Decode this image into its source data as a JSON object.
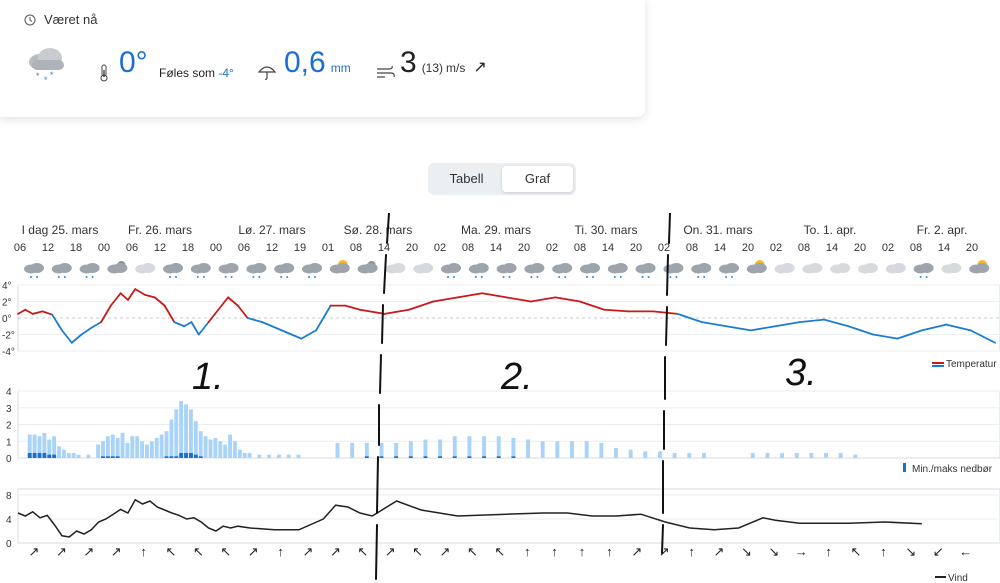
{
  "current": {
    "title": "Været nå",
    "temperature": "0°",
    "feels_like_label": "Føles som",
    "feels_like_value": "-4°",
    "precipitation": "0,6",
    "precip_unit": "mm",
    "wind": "3",
    "gust": "(13)",
    "wind_unit": "m/s",
    "wind_arrow": "↗",
    "weather_icon": "snow-cloud-icon"
  },
  "tabs": {
    "table": "Tabell",
    "graph": "Graf",
    "selected": "Graf"
  },
  "days": [
    {
      "label": "I dag 25. mars"
    },
    {
      "label": "Fr. 26. mars"
    },
    {
      "label": "Lø. 27. mars"
    },
    {
      "label": "Sø. 28. mars"
    },
    {
      "label": "Ma. 29. mars"
    },
    {
      "label": "Ti. 30. mars"
    },
    {
      "label": "On. 31. mars"
    },
    {
      "label": "To. 1. apr."
    },
    {
      "label": "Fr. 2. apr."
    }
  ],
  "hours": [
    "06",
    "12",
    "18",
    "00",
    "06",
    "12",
    "18",
    "00",
    "06",
    "12",
    "19",
    "01",
    "08",
    "14",
    "20",
    "02",
    "08",
    "14",
    "20",
    "02",
    "08",
    "14",
    "20",
    "02",
    "08",
    "14",
    "20",
    "02",
    "08",
    "14",
    "20",
    "02",
    "08",
    "14",
    "20",
    "02"
  ],
  "weather_icons": [
    "cloud-snow",
    "cloud-snow",
    "cloud-snow",
    "night-cloud",
    "cloud",
    "cloud-snow",
    "cloud-snow",
    "cloud-snow",
    "cloud-snow",
    "cloud-snow",
    "cloud-snow",
    "sun-cloud",
    "night-cloud",
    "cloud",
    "cloud",
    "cloud-snow",
    "cloud-snow",
    "cloud-snow",
    "cloud-snow",
    "cloud-snow",
    "cloud-snow",
    "cloud-snow",
    "cloud-snow",
    "cloud-snow",
    "cloud-snow",
    "cloud-snow",
    "sun-cloud",
    "cloud",
    "cloud",
    "cloud",
    "cloud",
    "cloud",
    "cloud-snow",
    "cloud",
    "sun-cloud",
    "cloud"
  ],
  "wind_arrows": [
    "↗",
    "↗",
    "↗",
    "↗",
    "↑",
    "↖",
    "↖",
    "↖",
    "↗",
    "↑",
    "↗",
    "↗",
    "↖",
    "↗",
    "↖",
    "↗",
    "↖",
    "↖",
    "↑",
    "↑",
    "↑",
    "↑",
    "↗",
    "↗",
    "↑",
    "↗",
    "↘",
    "↘",
    "→",
    "↑",
    "↖",
    "↑",
    "↘",
    "↙",
    "←",
    "↙"
  ],
  "temp_ticks": [
    "4°",
    "2°",
    "0°",
    "-2°",
    "-4°"
  ],
  "precip_ticks": [
    "4",
    "3",
    "2",
    "1",
    "0"
  ],
  "wind_ticks": [
    "8",
    "4",
    "0"
  ],
  "legends": {
    "temperature": "Temperatur",
    "precipitation": "Min./maks nedbør",
    "wind": "Vind"
  },
  "annotations": [
    "1.",
    "2.",
    "3."
  ],
  "colors": {
    "warm": "#c91a1a",
    "cold": "#1b7dd1",
    "precip": "#a9d3f8",
    "precip_dark": "#1b6fd1",
    "wind": "#222222",
    "accent": "#1b6fd1"
  },
  "chart_data": {
    "type": "line",
    "x_unit": "hour offset from 25. mars 06:00",
    "temperature": {
      "ylim": [
        -4,
        4
      ],
      "points": [
        [
          0,
          0.5
        ],
        [
          3,
          1.0
        ],
        [
          6,
          0.5
        ],
        [
          10,
          0.8
        ],
        [
          14,
          0.4
        ],
        [
          18,
          -1.5
        ],
        [
          22,
          -3.0
        ],
        [
          26,
          -2.0
        ],
        [
          30,
          -1.2
        ],
        [
          34,
          -0.5
        ],
        [
          38,
          1.5
        ],
        [
          42,
          3.0
        ],
        [
          45,
          2.2
        ],
        [
          48,
          3.5
        ],
        [
          52,
          2.8
        ],
        [
          56,
          2.5
        ],
        [
          60,
          1.5
        ],
        [
          64,
          -0.5
        ],
        [
          68,
          -1.0
        ],
        [
          71,
          -0.5
        ],
        [
          74,
          -2.0
        ],
        [
          78,
          -0.5
        ],
        [
          82,
          1.0
        ],
        [
          86,
          2.5
        ],
        [
          90,
          1.5
        ],
        [
          94,
          0
        ],
        [
          100,
          -0.5
        ],
        [
          108,
          -1.5
        ],
        [
          116,
          -2.5
        ],
        [
          122,
          -1.5
        ],
        [
          128,
          1.5
        ],
        [
          134,
          1.5
        ],
        [
          140,
          1.0
        ],
        [
          150,
          0.5
        ],
        [
          160,
          1.0
        ],
        [
          170,
          2.0
        ],
        [
          180,
          2.5
        ],
        [
          190,
          3.0
        ],
        [
          200,
          2.5
        ],
        [
          210,
          2.0
        ],
        [
          220,
          2.5
        ],
        [
          230,
          2.0
        ],
        [
          240,
          1.0
        ],
        [
          250,
          0.8
        ],
        [
          260,
          0.8
        ],
        [
          270,
          0.5
        ],
        [
          280,
          -0.5
        ],
        [
          290,
          -1.0
        ],
        [
          300,
          -1.5
        ],
        [
          310,
          -1.0
        ],
        [
          320,
          -0.5
        ],
        [
          330,
          -0.2
        ],
        [
          340,
          -1.0
        ],
        [
          350,
          -2.0
        ],
        [
          360,
          -2.5
        ],
        [
          370,
          -1.5
        ],
        [
          380,
          -0.8
        ],
        [
          390,
          -1.5
        ],
        [
          400,
          -3.0
        ]
      ]
    },
    "precipitation": {
      "ylim": [
        0,
        4
      ],
      "bars": [
        [
          4,
          1.4,
          0.3
        ],
        [
          6,
          1.4,
          0.3
        ],
        [
          8,
          1.3,
          0.3
        ],
        [
          10,
          1.5,
          0.3
        ],
        [
          12,
          1.1,
          0.2
        ],
        [
          14,
          1.3,
          0.2
        ],
        [
          16,
          0.7
        ],
        [
          18,
          0.5
        ],
        [
          20,
          0.3
        ],
        [
          22,
          0.3
        ],
        [
          24,
          0.2
        ],
        [
          28,
          0.2
        ],
        [
          32,
          0.8
        ],
        [
          34,
          1.0,
          0.1
        ],
        [
          36,
          1.3,
          0.1
        ],
        [
          38,
          1.4,
          0.1
        ],
        [
          40,
          1.2,
          0.1
        ],
        [
          42,
          1.5
        ],
        [
          44,
          0.9
        ],
        [
          46,
          1.3
        ],
        [
          48,
          1.3
        ],
        [
          50,
          1.0
        ],
        [
          52,
          0.8
        ],
        [
          54,
          1.0
        ],
        [
          56,
          1.2
        ],
        [
          58,
          1.4
        ],
        [
          60,
          1.6,
          0.1
        ],
        [
          62,
          2.3,
          0.1
        ],
        [
          64,
          2.9,
          0.1
        ],
        [
          66,
          3.4,
          0.3
        ],
        [
          68,
          3.2,
          0.3
        ],
        [
          70,
          2.9,
          0.3
        ],
        [
          72,
          2.2,
          0.2
        ],
        [
          74,
          1.6,
          0.1
        ],
        [
          76,
          1.3
        ],
        [
          78,
          1.1
        ],
        [
          80,
          1.2
        ],
        [
          82,
          1.0
        ],
        [
          84,
          0.8
        ],
        [
          86,
          1.4
        ],
        [
          88,
          1.0
        ],
        [
          90,
          0.5
        ],
        [
          92,
          0.3
        ],
        [
          94,
          0.3
        ],
        [
          98,
          0.2
        ],
        [
          102,
          0.2
        ],
        [
          106,
          0.2
        ],
        [
          110,
          0.2
        ],
        [
          114,
          0.2
        ],
        [
          130,
          0.9
        ],
        [
          136,
          0.9
        ],
        [
          142,
          0.9,
          0.1
        ],
        [
          148,
          0.9,
          0.1
        ],
        [
          154,
          0.9,
          0.1
        ],
        [
          160,
          1.0,
          0.1
        ],
        [
          166,
          1.1,
          0.1
        ],
        [
          172,
          1.1,
          0.1
        ],
        [
          178,
          1.3,
          0.1
        ],
        [
          184,
          1.3,
          0.1
        ],
        [
          190,
          1.3,
          0.1
        ],
        [
          196,
          1.3,
          0.1
        ],
        [
          202,
          1.2,
          0.1
        ],
        [
          208,
          1.1
        ],
        [
          214,
          1.0
        ],
        [
          220,
          1.0
        ],
        [
          226,
          1.0
        ],
        [
          232,
          1.0
        ],
        [
          238,
          0.9
        ],
        [
          244,
          0.6
        ],
        [
          250,
          0.5
        ],
        [
          256,
          0.4
        ],
        [
          262,
          0.4
        ],
        [
          268,
          0.3
        ],
        [
          274,
          0.3
        ],
        [
          280,
          0.3
        ],
        [
          300,
          0.3
        ],
        [
          306,
          0.3
        ],
        [
          312,
          0.3
        ],
        [
          318,
          0.3
        ],
        [
          324,
          0.3
        ],
        [
          330,
          0.3
        ],
        [
          336,
          0.3
        ],
        [
          342,
          0.2
        ]
      ]
    },
    "wind": {
      "ylim": [
        0,
        9
      ],
      "points": [
        [
          0,
          5
        ],
        [
          3,
          4.5
        ],
        [
          6,
          5.2
        ],
        [
          9,
          4.2
        ],
        [
          12,
          4.6
        ],
        [
          15,
          3.0
        ],
        [
          18,
          1.2
        ],
        [
          21,
          1.0
        ],
        [
          24,
          2.0
        ],
        [
          27,
          1.5
        ],
        [
          30,
          2.2
        ],
        [
          33,
          3.5
        ],
        [
          36,
          4.0
        ],
        [
          39,
          4.8
        ],
        [
          42,
          5.6
        ],
        [
          45,
          5.0
        ],
        [
          48,
          7.2
        ],
        [
          51,
          6.5
        ],
        [
          54,
          7.0
        ],
        [
          57,
          6.0
        ],
        [
          60,
          5.5
        ],
        [
          63,
          5.0
        ],
        [
          66,
          4.6
        ],
        [
          69,
          4.0
        ],
        [
          72,
          4.2
        ],
        [
          75,
          3.5
        ],
        [
          78,
          2.5
        ],
        [
          81,
          2.0
        ],
        [
          84,
          2.8
        ],
        [
          87,
          2.5
        ],
        [
          90,
          2.8
        ],
        [
          95,
          2.5
        ],
        [
          105,
          2.2
        ],
        [
          115,
          2.2
        ],
        [
          125,
          4.0
        ],
        [
          130,
          6.3
        ],
        [
          135,
          6.0
        ],
        [
          140,
          5.0
        ],
        [
          145,
          4.5
        ],
        [
          155,
          7.0
        ],
        [
          165,
          5.5
        ],
        [
          180,
          4.5
        ],
        [
          200,
          4.8
        ],
        [
          215,
          5.0
        ],
        [
          225,
          5.0
        ],
        [
          235,
          4.5
        ],
        [
          245,
          4.5
        ],
        [
          255,
          4.8
        ],
        [
          265,
          3.5
        ],
        [
          275,
          2.5
        ],
        [
          285,
          2.2
        ],
        [
          295,
          2.5
        ],
        [
          305,
          4.2
        ],
        [
          310,
          3.8
        ],
        [
          320,
          3.3
        ],
        [
          340,
          3.3
        ],
        [
          355,
          3.5
        ],
        [
          370,
          3.2
        ]
      ]
    }
  }
}
